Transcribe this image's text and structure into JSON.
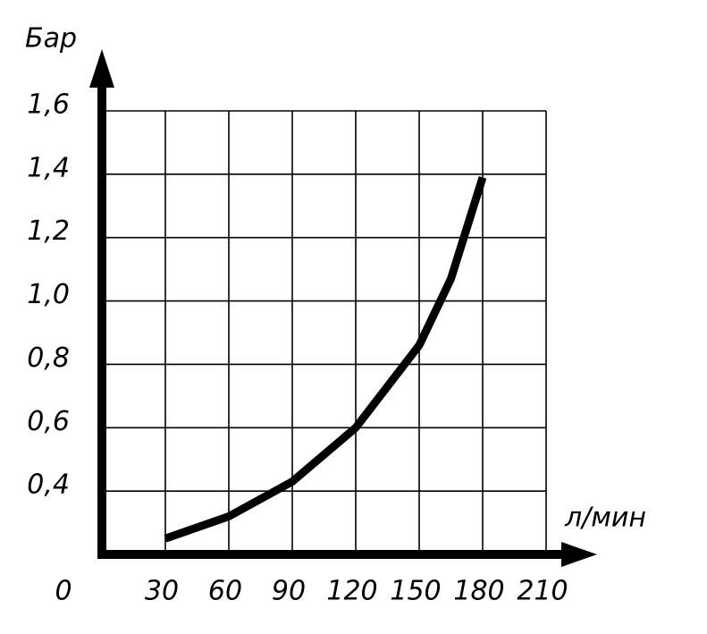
{
  "chart_data": {
    "type": "line",
    "y_label": "Бар",
    "x_label": "л/мин",
    "x": [
      30,
      60,
      90,
      120,
      150,
      165,
      180
    ],
    "series": [
      {
        "color": "#000000",
        "values": [
          0.25,
          0.32,
          0.43,
          0.6,
          0.86,
          1.07,
          1.39
        ]
      }
    ],
    "xlim": [
      0,
      210
    ],
    "xticks": [
      0,
      30,
      60,
      90,
      120,
      150,
      180,
      210
    ],
    "ylim": [
      0.2,
      1.6
    ],
    "yticks": [
      {
        "value": 0.4,
        "label": "0,4"
      },
      {
        "value": 0.6,
        "label": "0,6"
      },
      {
        "value": 0.8,
        "label": "0,8"
      },
      {
        "value": 1.0,
        "label": "1,0"
      },
      {
        "value": 1.2,
        "label": "1,2"
      },
      {
        "value": 1.4,
        "label": "1,4"
      },
      {
        "value": 1.6,
        "label": "1,6"
      }
    ],
    "grid": true
  }
}
